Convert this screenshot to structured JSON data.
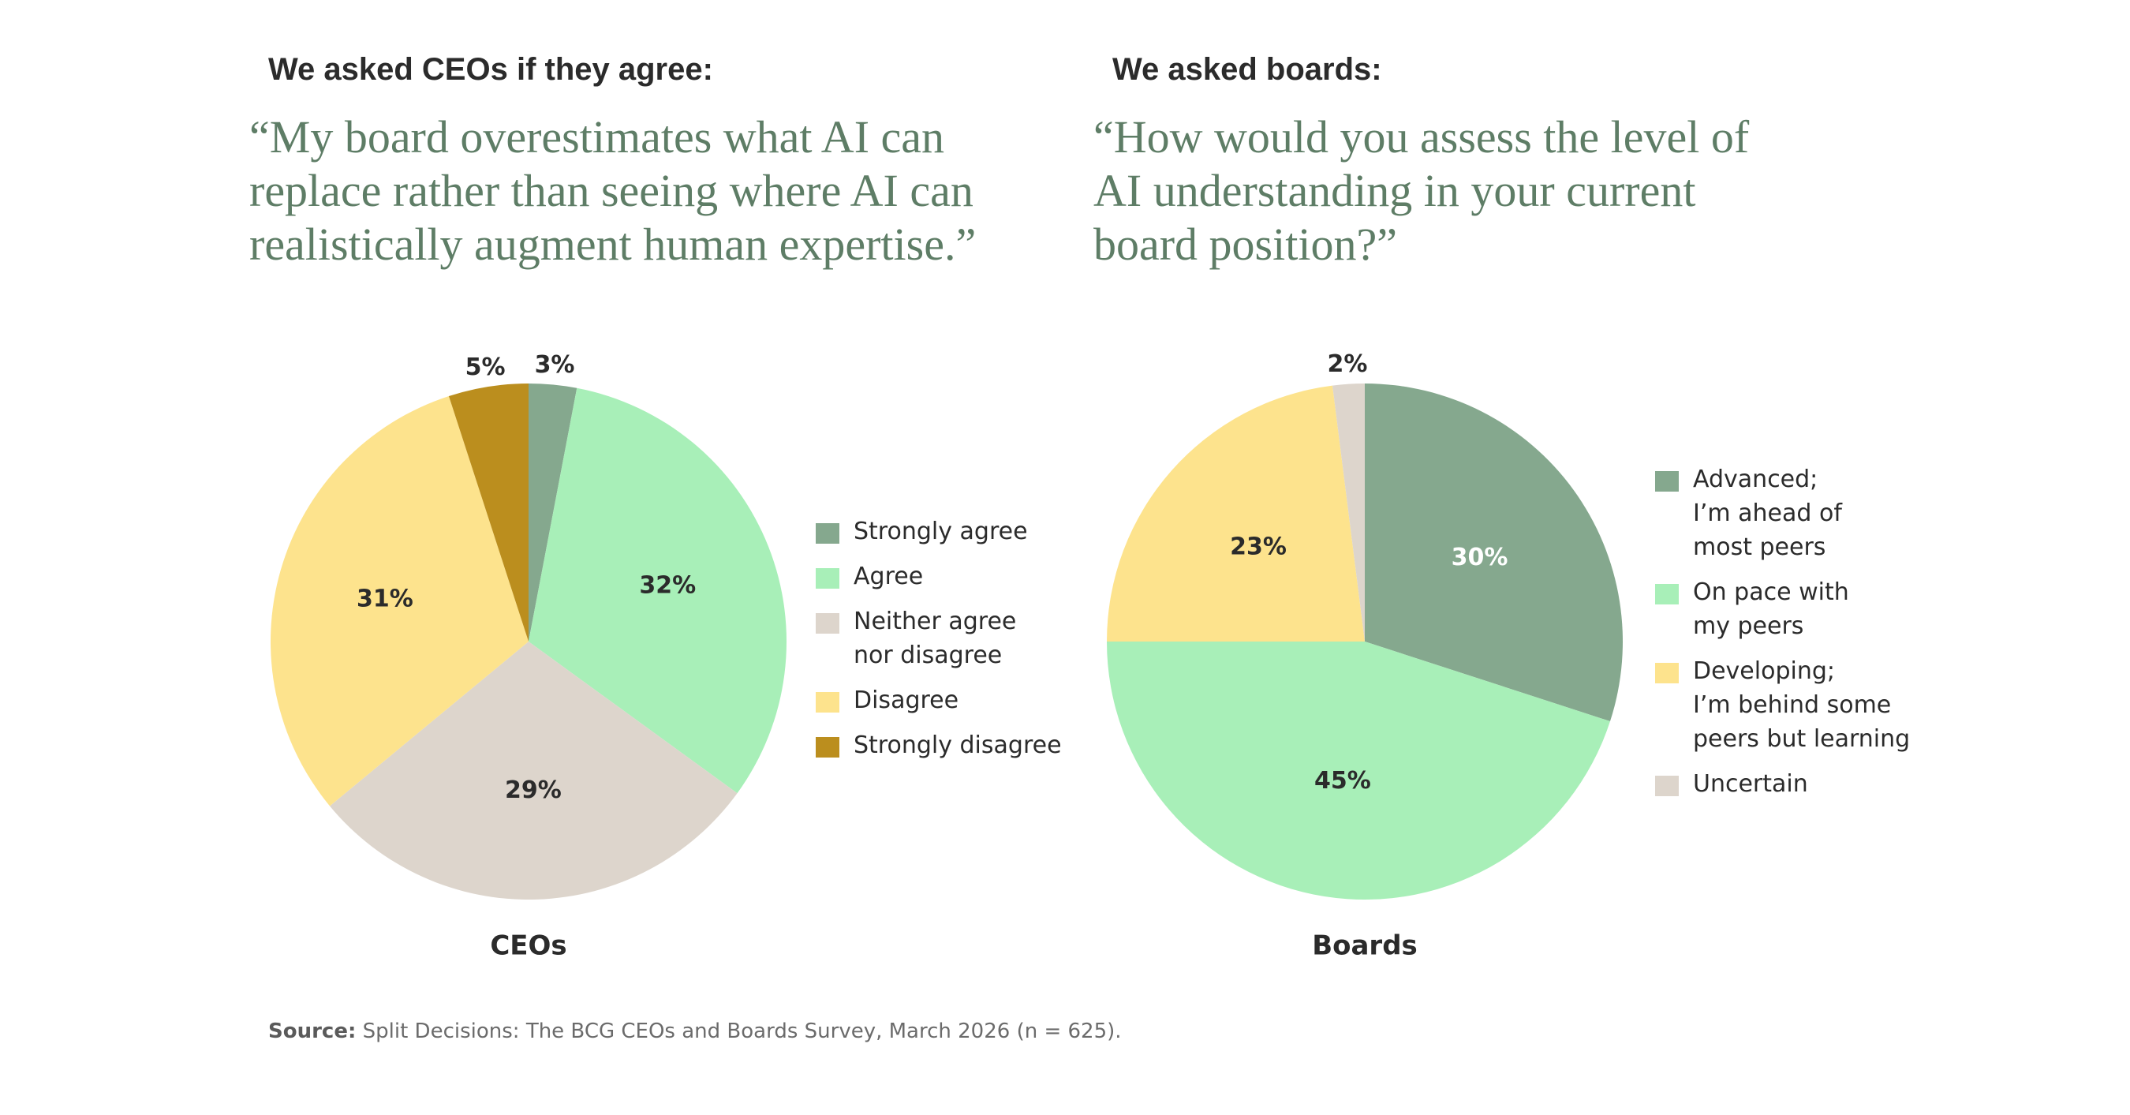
{
  "left_panel": {
    "heading": "We asked CEOs if they agree:",
    "quote_lines": [
      "“My board overestimates what AI can",
      "replace rather than seeing where AI can",
      "realistically augment human expertise.”"
    ],
    "caption": "CEOs",
    "legend": [
      {
        "lines": [
          "Strongly agree"
        ],
        "color": "#85a88e"
      },
      {
        "lines": [
          "Agree"
        ],
        "color": "#a8efb8"
      },
      {
        "lines": [
          "Neither agree",
          "nor disagree"
        ],
        "color": "#ddd5cc"
      },
      {
        "lines": [
          "Disagree"
        ],
        "color": "#fde38d"
      },
      {
        "lines": [
          "Strongly disagree"
        ],
        "color": "#bb8e1e"
      }
    ]
  },
  "right_panel": {
    "heading": "We asked boards:",
    "quote_lines": [
      "“How would you assess the level of",
      "AI understanding in your current",
      "board position?”"
    ],
    "caption": "Boards",
    "legend": [
      {
        "lines": [
          "Advanced;",
          "I’m ahead of",
          "most peers"
        ],
        "color": "#85a88e"
      },
      {
        "lines": [
          "On pace with",
          "my peers"
        ],
        "color": "#a8efb8"
      },
      {
        "lines": [
          "Developing;",
          "I’m behind some",
          "peers but learning"
        ],
        "color": "#fde38d"
      },
      {
        "lines": [
          "Uncertain"
        ],
        "color": "#ddd5cc"
      }
    ]
  },
  "chart_data": [
    {
      "type": "pie",
      "title": "CEOs",
      "categories": [
        "Strongly agree",
        "Agree",
        "Neither agree nor disagree",
        "Disagree",
        "Strongly disagree"
      ],
      "values": [
        3,
        32,
        29,
        31,
        5
      ],
      "labels": [
        "3%",
        "32%",
        "29%",
        "31%",
        "5%"
      ],
      "colors": [
        "#85a88e",
        "#a8efb8",
        "#ddd5cc",
        "#fde38d",
        "#bb8e1e"
      ],
      "legend": "right"
    },
    {
      "type": "pie",
      "title": "Boards",
      "categories": [
        "Advanced; I’m ahead of most peers",
        "On pace with my peers",
        "Developing; I’m behind some peers but learning",
        "Uncertain"
      ],
      "values": [
        30,
        45,
        23,
        2
      ],
      "labels": [
        "30%",
        "45%",
        "23%",
        "2%"
      ],
      "colors": [
        "#85a88e",
        "#a8efb8",
        "#fde38d",
        "#ddd5cc"
      ],
      "legend": "right"
    }
  ],
  "source": {
    "label": "Source:",
    "text": " Split Decisions: The BCG CEOs and Boards Survey, March 2026 (n = 625)."
  }
}
